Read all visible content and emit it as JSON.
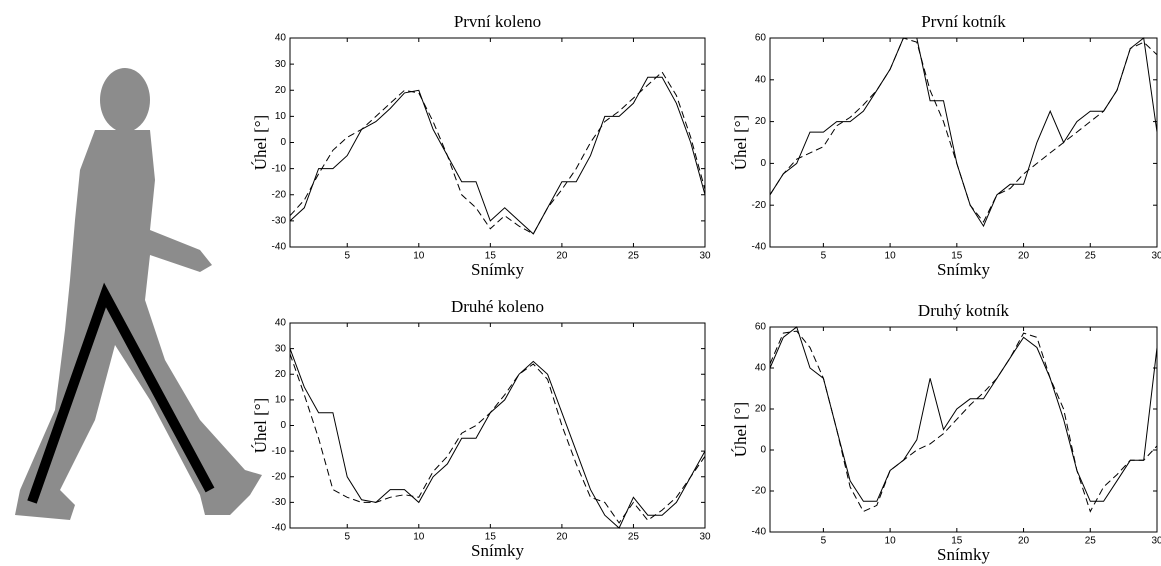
{
  "chart_data": [
    {
      "type": "line",
      "title": "První koleno",
      "xlabel": "Snímky",
      "ylabel": "Úhel [°]",
      "x": [
        1,
        2,
        3,
        4,
        5,
        6,
        7,
        8,
        9,
        10,
        11,
        12,
        13,
        14,
        15,
        16,
        17,
        18,
        19,
        20,
        21,
        22,
        23,
        24,
        25,
        26,
        27,
        28,
        29,
        30
      ],
      "xlim": [
        1,
        30
      ],
      "xticks": [
        5,
        10,
        15,
        20,
        25,
        30
      ],
      "ylim": [
        -40,
        40
      ],
      "yticks": [
        -40,
        -30,
        -20,
        -10,
        0,
        10,
        20,
        30,
        40
      ],
      "series": [
        {
          "color": "#000000",
          "linestyle": "solid",
          "values": [
            -30,
            -25,
            -10,
            -10,
            -5,
            5,
            8,
            13,
            19,
            20,
            5,
            -5,
            -15,
            -15,
            -30,
            -25,
            -30,
            -35,
            -25,
            -15,
            -15,
            -5,
            10,
            10,
            15,
            25,
            25,
            15,
            0,
            -20
          ]
        },
        {
          "color": "#000000",
          "linestyle": "dashed",
          "values": [
            -28,
            -22,
            -12,
            -3,
            2,
            5,
            10,
            15,
            20,
            19,
            8,
            -5,
            -20,
            -25,
            -33,
            -28,
            -32,
            -35,
            -25,
            -18,
            -10,
            0,
            8,
            12,
            17,
            22,
            27,
            18,
            2,
            -18
          ]
        }
      ]
    },
    {
      "type": "line",
      "title": "První kotník",
      "xlabel": "Snímky",
      "ylabel": "Úhel [°]",
      "x": [
        1,
        2,
        3,
        4,
        5,
        6,
        7,
        8,
        9,
        10,
        11,
        12,
        13,
        14,
        15,
        16,
        17,
        18,
        19,
        20,
        21,
        22,
        23,
        24,
        25,
        26,
        27,
        28,
        29,
        30
      ],
      "xlim": [
        1,
        30
      ],
      "xticks": [
        5,
        10,
        15,
        20,
        25,
        30
      ],
      "ylim": [
        -40,
        60
      ],
      "yticks": [
        -40,
        -20,
        0,
        20,
        40,
        60
      ],
      "series": [
        {
          "color": "#000000",
          "linestyle": "solid",
          "values": [
            -15,
            -5,
            0,
            15,
            15,
            20,
            20,
            25,
            35,
            45,
            60,
            60,
            30,
            30,
            0,
            -20,
            -30,
            -15,
            -10,
            -10,
            10,
            25,
            10,
            20,
            25,
            25,
            35,
            55,
            60,
            15
          ]
        },
        {
          "color": "#000000",
          "linestyle": "dashed",
          "values": [
            -15,
            -5,
            2,
            5,
            8,
            18,
            22,
            28,
            35,
            45,
            60,
            58,
            35,
            20,
            0,
            -20,
            -28,
            -15,
            -12,
            -5,
            0,
            5,
            10,
            15,
            20,
            25,
            35,
            55,
            58,
            52
          ]
        }
      ]
    },
    {
      "type": "line",
      "title": "Druhé koleno",
      "xlabel": "Snímky",
      "ylabel": "Úhel [°]",
      "x": [
        1,
        2,
        3,
        4,
        5,
        6,
        7,
        8,
        9,
        10,
        11,
        12,
        13,
        14,
        15,
        16,
        17,
        18,
        19,
        20,
        21,
        22,
        23,
        24,
        25,
        26,
        27,
        28,
        29,
        30
      ],
      "xlim": [
        1,
        30
      ],
      "xticks": [
        5,
        10,
        15,
        20,
        25,
        30
      ],
      "ylim": [
        -40,
        40
      ],
      "yticks": [
        -40,
        -30,
        -20,
        -10,
        0,
        10,
        20,
        30,
        40
      ],
      "series": [
        {
          "color": "#000000",
          "linestyle": "solid",
          "values": [
            30,
            15,
            5,
            5,
            -20,
            -29,
            -30,
            -25,
            -25,
            -30,
            -20,
            -15,
            -5,
            -5,
            5,
            10,
            20,
            25,
            20,
            5,
            -10,
            -25,
            -35,
            -40,
            -28,
            -35,
            -35,
            -30,
            -20,
            -10
          ]
        },
        {
          "color": "#000000",
          "linestyle": "dashed",
          "values": [
            28,
            12,
            -5,
            -25,
            -28,
            -30,
            -30,
            -28,
            -27,
            -28,
            -18,
            -12,
            -3,
            0,
            5,
            12,
            20,
            24,
            18,
            0,
            -15,
            -28,
            -30,
            -38,
            -30,
            -37,
            -33,
            -28,
            -20,
            -12
          ]
        }
      ]
    },
    {
      "type": "line",
      "title": "Druhý kotník",
      "xlabel": "Snímky",
      "ylabel": "Úhel [°]",
      "x": [
        1,
        2,
        3,
        4,
        5,
        6,
        7,
        8,
        9,
        10,
        11,
        12,
        13,
        14,
        15,
        16,
        17,
        18,
        19,
        20,
        21,
        22,
        23,
        24,
        25,
        26,
        27,
        28,
        29,
        30
      ],
      "xlim": [
        1,
        30
      ],
      "xticks": [
        5,
        10,
        15,
        20,
        25,
        30
      ],
      "ylim": [
        -40,
        60
      ],
      "yticks": [
        -40,
        -20,
        0,
        20,
        40,
        60
      ],
      "series": [
        {
          "color": "#000000",
          "linestyle": "solid",
          "values": [
            40,
            55,
            60,
            40,
            35,
            10,
            -15,
            -25,
            -25,
            -10,
            -5,
            5,
            35,
            10,
            20,
            25,
            25,
            35,
            45,
            55,
            50,
            35,
            15,
            -10,
            -25,
            -25,
            -15,
            -5,
            -5,
            50
          ]
        },
        {
          "color": "#000000",
          "linestyle": "dashed",
          "values": [
            42,
            57,
            58,
            50,
            35,
            10,
            -18,
            -30,
            -27,
            -10,
            -5,
            0,
            3,
            8,
            15,
            22,
            28,
            35,
            45,
            57,
            55,
            35,
            20,
            -10,
            -30,
            -18,
            -12,
            -5,
            -5,
            2
          ]
        }
      ]
    }
  ]
}
